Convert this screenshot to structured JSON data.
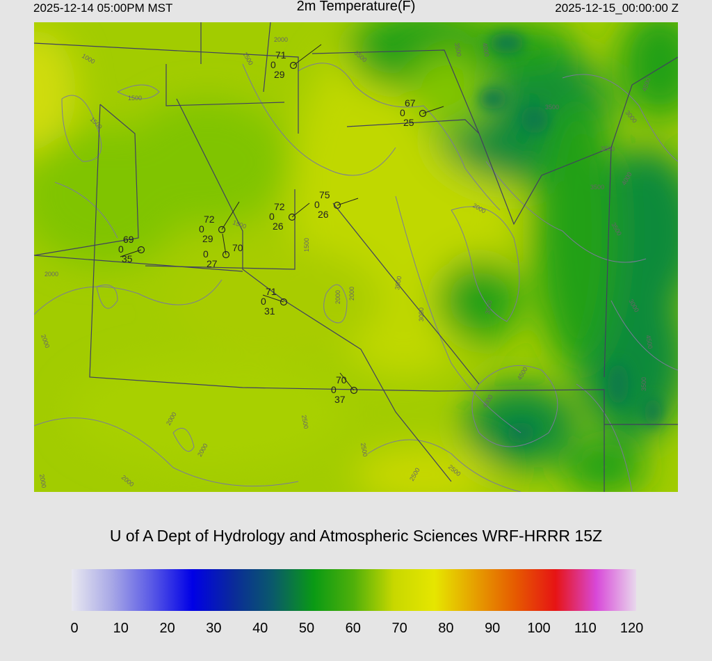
{
  "header": {
    "local_time": "2025-12-14 05:00PM MST",
    "title": "2m Temperature(F)",
    "valid_time": "2025-12-15_00:00:00 Z"
  },
  "credit": "U of A Dept of Hydrology and Atmospheric Sciences WRF-HRRR 15Z",
  "stations": [
    {
      "temp": "71",
      "pressure": "0",
      "dewpoint": "29"
    },
    {
      "temp": "67",
      "pressure": "0",
      "dewpoint": "25"
    },
    {
      "temp": "75",
      "pressure": "0",
      "dewpoint": "26"
    },
    {
      "temp": "72",
      "pressure": "0",
      "dewpoint": "26"
    },
    {
      "temp": "72",
      "pressure": "0",
      "dewpoint": "29"
    },
    {
      "temp": "70",
      "pressure": "0",
      "dewpoint": "27"
    },
    {
      "temp": "69",
      "pressure": "0",
      "dewpoint": "35"
    },
    {
      "temp": "71",
      "pressure": "0",
      "dewpoint": "31"
    },
    {
      "temp": "70",
      "pressure": "0",
      "dewpoint": "37"
    }
  ],
  "contour_labels": [
    "1000",
    "1500",
    "1500",
    "1500",
    "2000",
    "3500",
    "3500",
    "4000",
    "3500",
    "3000",
    "2500",
    "3500",
    "4000",
    "1500",
    "2000",
    "2000",
    "2000",
    "2500",
    "2000",
    "2000",
    "3500",
    "3000",
    "3500",
    "2000",
    "4500",
    "4000",
    "4500",
    "3500",
    "2500",
    "2500",
    "2000",
    "2000",
    "2000",
    "2500",
    "1500",
    "4500",
    "3000",
    "3500"
  ],
  "colorbar": {
    "ticks": [
      "0",
      "10",
      "20",
      "30",
      "40",
      "50",
      "60",
      "70",
      "80",
      "90",
      "100",
      "110",
      "120"
    ],
    "colors": [
      "#e8e8f0",
      "#a8a8e6",
      "#5858e6",
      "#0000e6",
      "#0a2a9a",
      "#0a5a6a",
      "#0a9a14",
      "#50b00a",
      "#c8d800",
      "#e6e600",
      "#e6a000",
      "#e65a00",
      "#e61414",
      "#d848d8",
      "#e8d8ec"
    ]
  },
  "map_colors": {
    "lowland": "#a6d000",
    "midland": "#80c400",
    "highland": "#22a016",
    "peaks": "#0a8a3a",
    "contour": "#7a7a9a",
    "roads": "#404060"
  }
}
